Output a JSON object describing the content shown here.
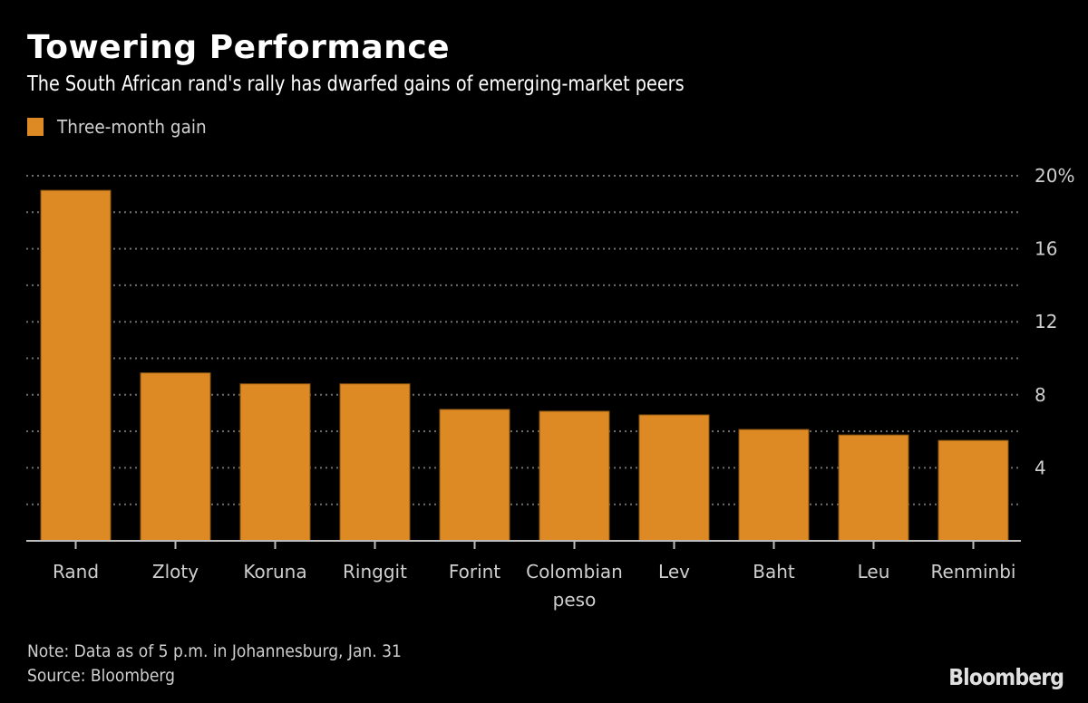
{
  "header": {
    "title": "Towering Performance",
    "subtitle": "The South African rand's rally has dwarfed gains of emerging-market peers"
  },
  "legend": {
    "label": "Three-month gain",
    "color": "#dd8a25"
  },
  "footer": {
    "note": "Note: Data as of 5 p.m. in Johannesburg, Jan. 31",
    "source": "Source: Bloomberg",
    "logo": "Bloomberg"
  },
  "chart_data": {
    "type": "bar",
    "title": "Towering Performance",
    "subtitle": "The South African rand's rally has dwarfed gains of emerging-market peers",
    "categories": [
      "Rand",
      "Zloty",
      "Koruna",
      "Ringgit",
      "Forint",
      "Colombian peso",
      "Lev",
      "Baht",
      "Leu",
      "Renminbi"
    ],
    "category_lines": [
      [
        "Rand"
      ],
      [
        "Zloty"
      ],
      [
        "Koruna"
      ],
      [
        "Ringgit"
      ],
      [
        "Forint"
      ],
      [
        "Colombian",
        "peso"
      ],
      [
        "Lev"
      ],
      [
        "Baht"
      ],
      [
        "Leu"
      ],
      [
        "Renminbi"
      ]
    ],
    "series": [
      {
        "name": "Three-month gain",
        "color": "#dd8a25",
        "values": [
          19.2,
          9.2,
          8.6,
          8.6,
          7.2,
          7.1,
          6.9,
          6.1,
          5.8,
          5.5
        ]
      }
    ],
    "xlabel": "",
    "ylabel": "",
    "ylim": [
      0,
      20
    ],
    "yticks": [
      2,
      4,
      6,
      8,
      10,
      12,
      14,
      16,
      18,
      20
    ],
    "ytick_labels": {
      "4": "4",
      "8": "8",
      "12": "12",
      "16": "16",
      "20": "20%"
    },
    "y_axis_side": "right",
    "grid": true,
    "legend_position": "top-left"
  }
}
